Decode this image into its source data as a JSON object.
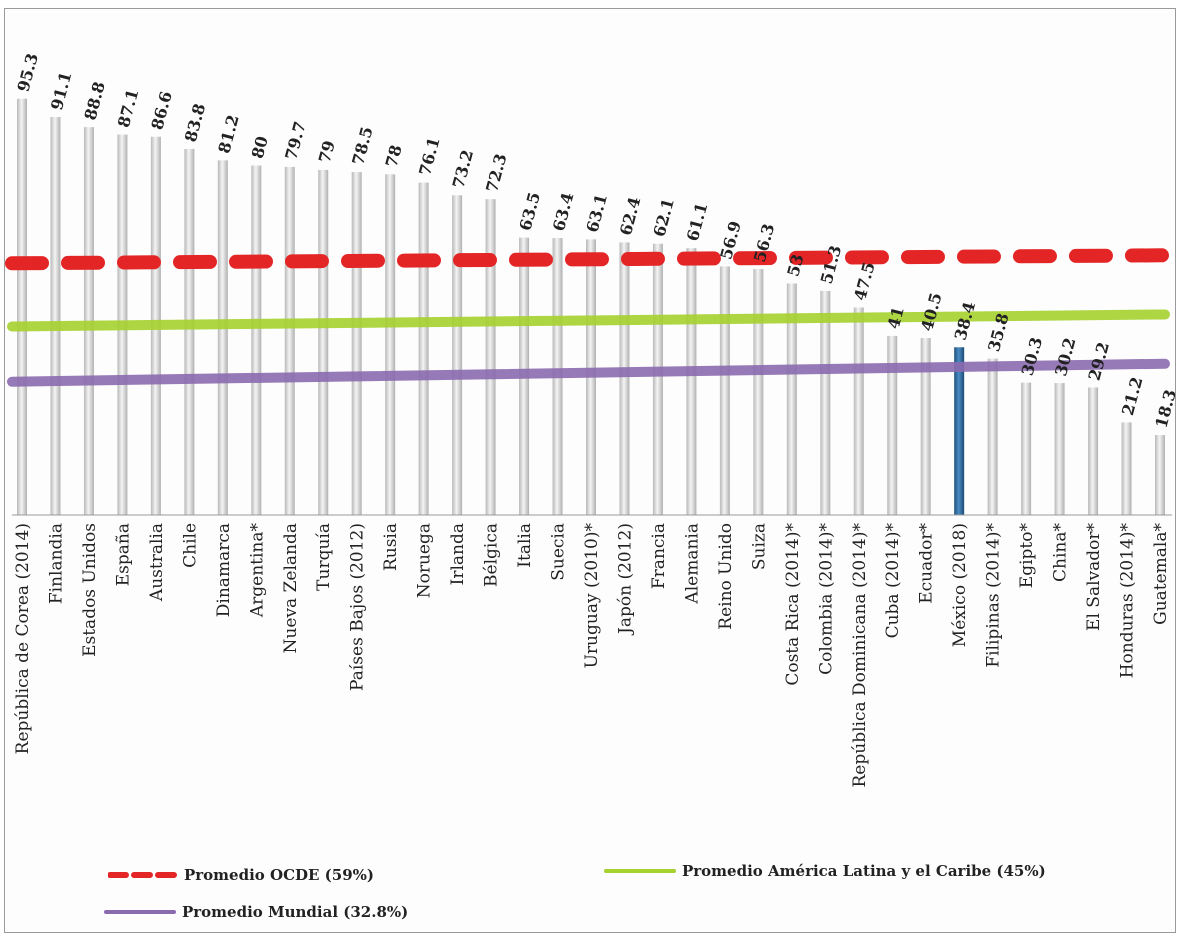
{
  "chart_data": {
    "type": "bar",
    "categories": [
      "República de Corea (2014)",
      "Finlandia",
      "Estados Unidos",
      "España",
      "Australia",
      "Chile",
      "Dinamarca",
      "Argentina*",
      "Nueva Zelanda",
      "Turquía",
      "Países Bajos (2012)",
      "Rusia",
      "Noruega",
      "Irlanda",
      "Bélgica",
      "Italia",
      "Suecia",
      "Uruguay (2010)*",
      "Japón (2012)",
      "Francia",
      "Alemania",
      "Reino Unido",
      "Suiza",
      "Costa Rica (2014)*",
      "Colombia (2014)*",
      "República Dominicana (2014)*",
      "Cuba (2014)*",
      "Ecuador*",
      "México (2018)",
      "Filipinas (2014)*",
      "Egipto*",
      "China*",
      "El Salvador*",
      "Honduras (2014)*",
      "Guatemala*"
    ],
    "values": [
      95.3,
      91.1,
      88.8,
      87.1,
      86.6,
      83.8,
      81.2,
      80,
      79.7,
      79,
      78.5,
      78,
      76.1,
      73.2,
      72.3,
      63.5,
      63.4,
      63.1,
      62.4,
      62.1,
      61.1,
      56.9,
      56.3,
      53,
      51.3,
      47.5,
      41,
      40.5,
      38.4,
      35.8,
      30.3,
      30.2,
      29.2,
      21.2,
      18.3
    ],
    "value_labels": [
      "95.3",
      "91.1",
      "88.8",
      "87.1",
      "86.6",
      "83.8",
      "81.2",
      "80",
      "79.7",
      "79",
      "78.5",
      "78",
      "76.1",
      "73.2",
      "72.3",
      "63.5",
      "63.4",
      "63.1",
      "62.4",
      "62.1",
      "61.1",
      "56.9",
      "56.3",
      "53",
      "51.3",
      "47.5",
      "41",
      "40.5",
      "38.4",
      "35.8",
      "30.3",
      "30.2",
      "29.2",
      "21.2",
      "18.3"
    ],
    "highlight_category": "México (2018)",
    "ylim": [
      0,
      100
    ],
    "reference_lines": [
      {
        "name": "Promedio OCDE (59%)",
        "value": 59,
        "style": "dashed",
        "color": "#e32526"
      },
      {
        "name": "Promedio América Latina y el Caribe (45%)",
        "value": 45,
        "style": "solid",
        "color": "#a6d22e"
      },
      {
        "name": "Promedio Mundial (32.8%)",
        "value": 32.8,
        "style": "solid",
        "color": "#8b6bb0"
      }
    ],
    "colors": {
      "bar": "#d4d4d4",
      "bar_highlight": "#2b6aa0"
    }
  },
  "legend": {
    "ocde": "Promedio OCDE (59%)",
    "alc": "Promedio América Latina y el Caribe (45%)",
    "mundial": "Promedio Mundial (32.8%)"
  }
}
